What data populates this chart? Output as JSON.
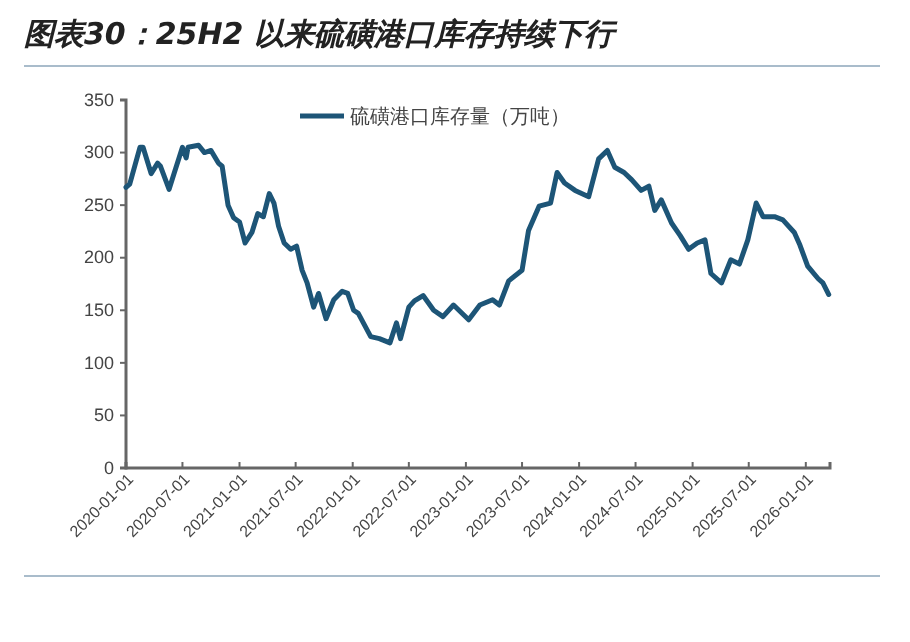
{
  "chart_data": {
    "type": "line",
    "title": "图表30：25H2 以来硫磺港口库存持续下行",
    "x": [
      "2020-01-01",
      "2020-01-13",
      "2020-02-15",
      "2020-02-25",
      "2020-03-22",
      "2020-04-12",
      "2020-04-21",
      "2020-05-19",
      "2020-06-04",
      "2020-07-01",
      "2020-07-13",
      "2020-07-19",
      "2020-08-22",
      "2020-09-10",
      "2020-10-01",
      "2020-10-25",
      "2020-11-06",
      "2020-11-25",
      "2020-12-13",
      "2021-01-01",
      "2021-01-19",
      "2021-02-10",
      "2021-03-01",
      "2021-03-19",
      "2021-04-07",
      "2021-04-22",
      "2021-05-07",
      "2021-05-25",
      "2021-06-15",
      "2021-07-04",
      "2021-07-22",
      "2021-08-07",
      "2021-08-28",
      "2021-09-13",
      "2021-10-07",
      "2021-11-01",
      "2021-11-28",
      "2021-12-16",
      "2022-01-04",
      "2022-01-19",
      "2022-02-28",
      "2022-03-28",
      "2022-05-01",
      "2022-05-22",
      "2022-06-04",
      "2022-07-01",
      "2022-07-19",
      "2022-08-16",
      "2022-09-19",
      "2022-10-19",
      "2022-11-22",
      "2023-01-10",
      "2023-02-15",
      "2023-03-28",
      "2023-04-19",
      "2023-05-19",
      "2023-07-01",
      "2023-07-22",
      "2023-08-25",
      "2023-10-01",
      "2023-10-22",
      "2023-11-15",
      "2023-12-19",
      "2024-02-01",
      "2024-03-04",
      "2024-04-01",
      "2024-04-25",
      "2024-05-25",
      "2024-06-19",
      "2024-07-19",
      "2024-08-13",
      "2024-09-01",
      "2024-09-22",
      "2024-10-25",
      "2024-11-22",
      "2024-12-19",
      "2025-01-16",
      "2025-02-10",
      "2025-03-01",
      "2025-04-04",
      "2025-05-04",
      "2025-06-01",
      "2025-06-28",
      "2025-07-25",
      "2025-08-16",
      "2025-09-22",
      "2025-10-19",
      "2025-11-25",
      "2025-12-13",
      "2026-01-07",
      "2026-02-10",
      "2026-02-25",
      "2026-03-16"
    ],
    "series": [
      {
        "name": "硫磺港口库存量（万吨）",
        "color": "#1d5577",
        "values": [
          267,
          270,
          305,
          305,
          280,
          290,
          287,
          265,
          280,
          305,
          295,
          305,
          307,
          300,
          302,
          290,
          287,
          250,
          238,
          234,
          214,
          224,
          242,
          239,
          261,
          252,
          230,
          214,
          208,
          211,
          188,
          176,
          153,
          166,
          142,
          160,
          168,
          166,
          150,
          147,
          125,
          123,
          119,
          138,
          123,
          153,
          159,
          164,
          150,
          144,
          155,
          141,
          155,
          160,
          155,
          178,
          188,
          226,
          249,
          252,
          281,
          271,
          264,
          258,
          294,
          302,
          286,
          281,
          274,
          264,
          268,
          245,
          255,
          233,
          221,
          208,
          214,
          217,
          185,
          176,
          198,
          194,
          217,
          252,
          239,
          239,
          236,
          224,
          212,
          192,
          180,
          176,
          165
        ]
      }
    ],
    "xlim": [
      "2020-01-01",
      "2026-03-20"
    ],
    "xticks": [
      "2020-01-01",
      "2020-07-01",
      "2021-01-01",
      "2021-07-01",
      "2022-01-01",
      "2022-07-01",
      "2023-01-01",
      "2023-07-01",
      "2024-01-01",
      "2024-07-01",
      "2025-01-01",
      "2025-07-01",
      "2026-01-01"
    ],
    "ylim": [
      0,
      350
    ],
    "yticks": [
      0,
      50,
      100,
      150,
      200,
      250,
      300,
      350
    ],
    "grid": false,
    "legend": "top",
    "marker": "none",
    "line_style": "solid"
  }
}
